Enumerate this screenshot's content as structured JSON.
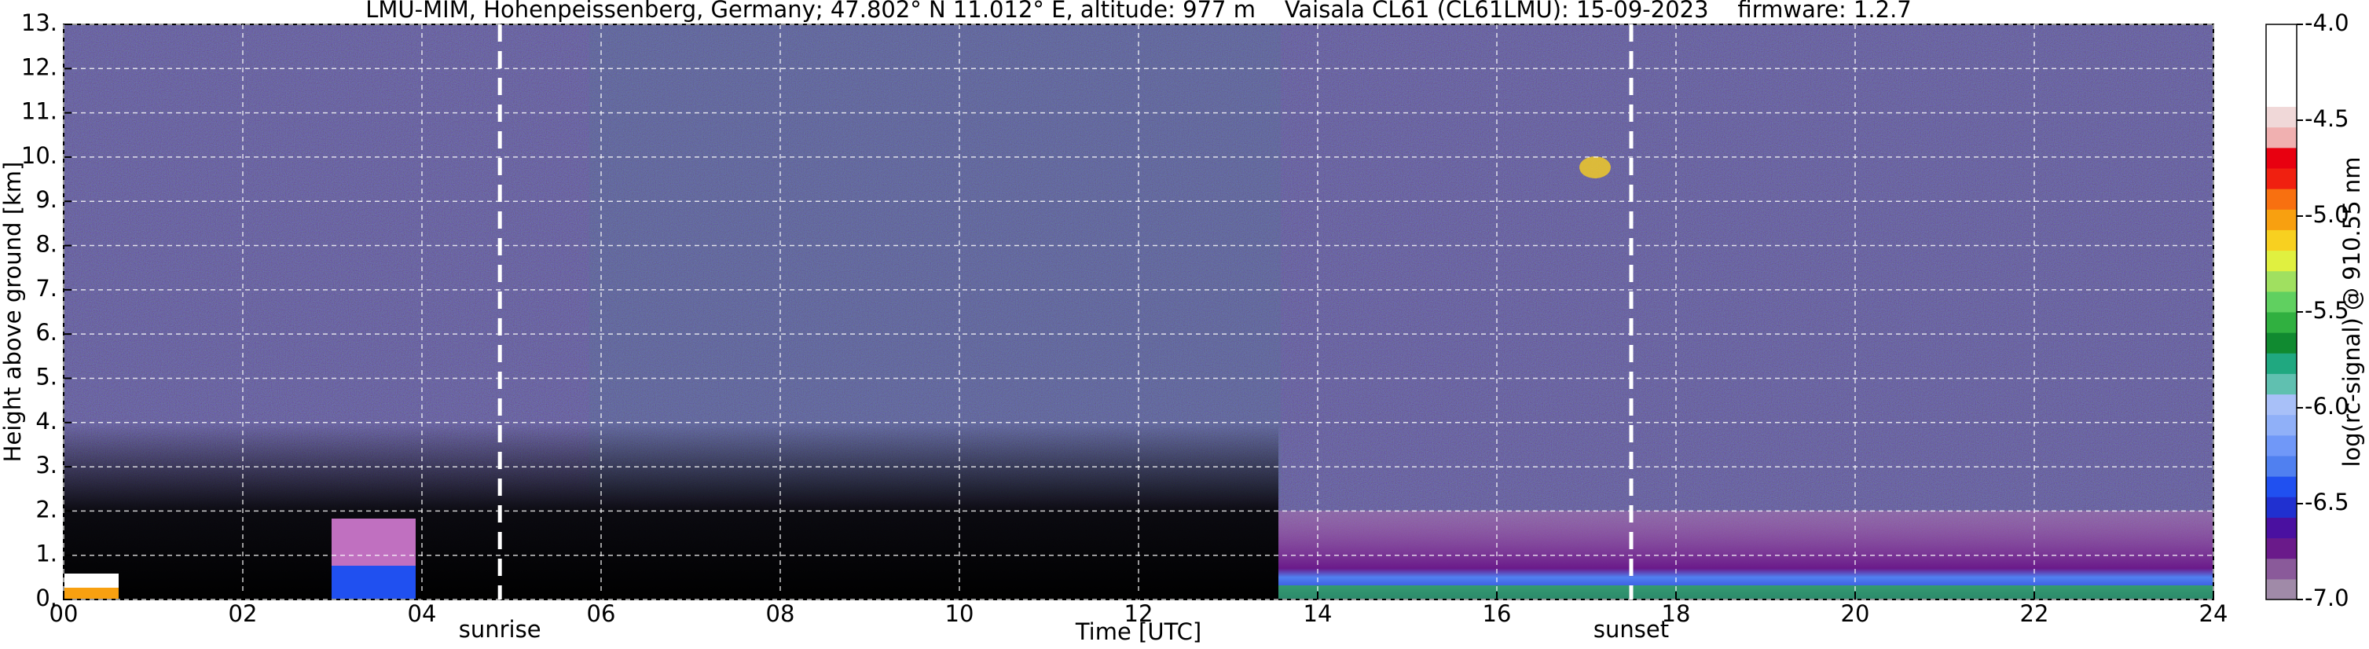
{
  "chart_data": {
    "type": "heatmap",
    "title": "LMU-MIM, Hohenpeissenberg, Germany; 47.802° N 11.012° E, altitude: 977 m    Vaisala CL61 (CL61LMU): 15-09-2023    firmware: 1.2.7",
    "x_label": "Time [UTC]",
    "y_label": "Height above ground [km]",
    "xlim": [
      0,
      24
    ],
    "xticks": [
      {
        "value": 0,
        "label": "00"
      },
      {
        "value": 2,
        "label": "02"
      },
      {
        "value": 4,
        "label": "04"
      },
      {
        "value": 6,
        "label": "06"
      },
      {
        "value": 8,
        "label": "08"
      },
      10,
      12,
      14,
      16,
      18,
      20,
      22,
      24
    ],
    "ylim": [
      0,
      13
    ],
    "yticks": [
      {
        "value": 0,
        "label": "0."
      },
      {
        "value": 1,
        "label": "1."
      },
      {
        "value": 2,
        "label": "2."
      },
      {
        "value": 3,
        "label": "3."
      },
      {
        "value": 4,
        "label": "4."
      },
      {
        "value": 5,
        "label": "5."
      },
      {
        "value": 6,
        "label": "6."
      },
      {
        "value": 7,
        "label": "7."
      },
      {
        "value": 8,
        "label": "8."
      },
      {
        "value": 9,
        "label": "9."
      },
      {
        "value": 10,
        "label": "10."
      },
      {
        "value": 11,
        "label": "11."
      },
      {
        "value": 12,
        "label": "12."
      },
      {
        "value": 13,
        "label": "13."
      }
    ],
    "grid": true,
    "vlines": [
      {
        "x": 4.87,
        "label": "sunrise"
      },
      {
        "x": 17.5,
        "label": "sunset"
      }
    ],
    "colorbar": {
      "label": "log(rc-signal) @ 910.55 nm",
      "lim": [
        -7,
        -4
      ],
      "ticks": [
        {
          "value": -4,
          "label": "-4.0"
        },
        {
          "value": -4.5,
          "label": "-4.5"
        },
        {
          "value": -5,
          "label": "-5.0"
        },
        {
          "value": -5.5,
          "label": "-5.5"
        },
        {
          "value": -6,
          "label": "-6.0"
        },
        {
          "value": -6.5,
          "label": "-6.5"
        },
        {
          "value": -7,
          "label": "-7.0"
        }
      ],
      "colors": [
        "#a08aa8",
        "#8a5a9a",
        "#6a1a8a",
        "#4a10a0",
        "#2030d0",
        "#2050f0",
        "#5080f0",
        "#7098f8",
        "#90b0f8",
        "#a8c0f8",
        "#60c0b0",
        "#20a880",
        "#108a30",
        "#30b040",
        "#60d060",
        "#a0e060",
        "#e0f040",
        "#f8d020",
        "#f8a010",
        "#f87010",
        "#f02010",
        "#e80010",
        "#f0b0b0",
        "#f0d8d8",
        "#ffffff",
        "#ffffff",
        "#ffffff",
        "#ffffff"
      ]
    }
  }
}
